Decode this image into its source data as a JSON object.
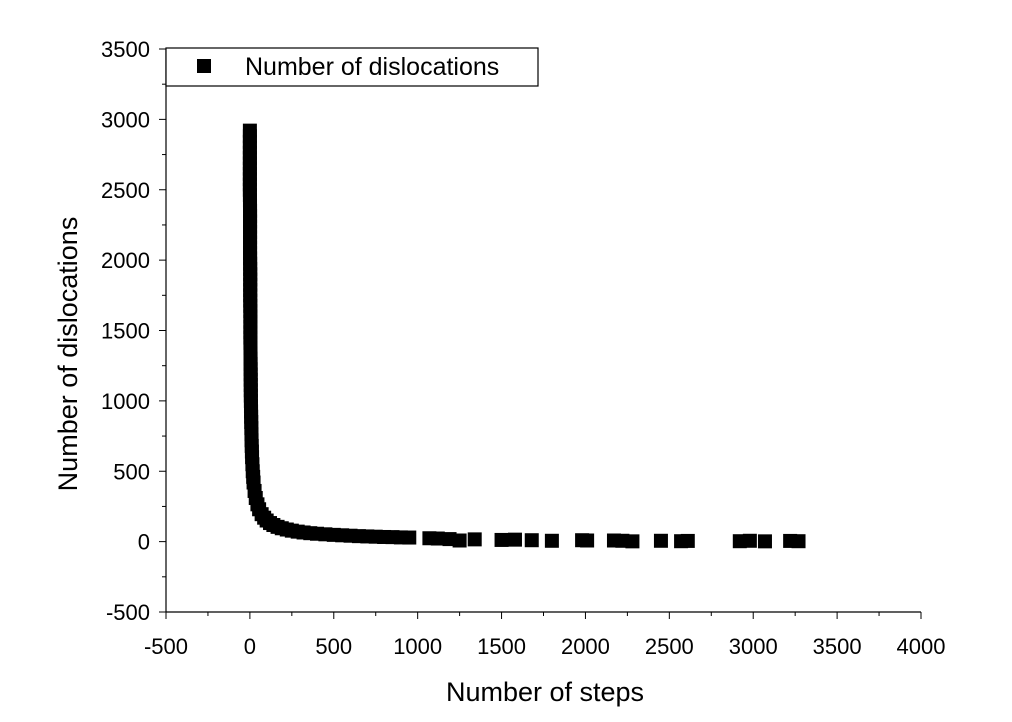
{
  "chart_data": {
    "type": "scatter",
    "title": "",
    "xlabel": "Number of steps",
    "ylabel": "Number of dislocations",
    "xlim": [
      -500,
      4000
    ],
    "ylim": [
      -500,
      3500
    ],
    "xticks": [
      -500,
      0,
      500,
      1000,
      1500,
      2000,
      2500,
      3000,
      3500,
      4000
    ],
    "yticks": [
      -500,
      0,
      500,
      1000,
      1500,
      2000,
      2500,
      3000,
      3500
    ],
    "grid": false,
    "legend_position": "top-left",
    "marker": "square",
    "marker_color": "#000000",
    "series": [
      {
        "name": "Number of dislocations",
        "points": [
          [
            0,
            2920
          ],
          [
            0,
            2800
          ],
          [
            0,
            2650
          ],
          [
            0,
            2500
          ],
          [
            1,
            2350
          ],
          [
            1,
            2200
          ],
          [
            1,
            2050
          ],
          [
            2,
            1900
          ],
          [
            2,
            1750
          ],
          [
            3,
            1600
          ],
          [
            3,
            1450
          ],
          [
            4,
            1300
          ],
          [
            5,
            1150
          ],
          [
            6,
            1000
          ],
          [
            8,
            850
          ],
          [
            10,
            720
          ],
          [
            13,
            600
          ],
          [
            17,
            500
          ],
          [
            22,
            420
          ],
          [
            28,
            360
          ],
          [
            35,
            310
          ],
          [
            45,
            265
          ],
          [
            55,
            230
          ],
          [
            70,
            195
          ],
          [
            85,
            170
          ],
          [
            100,
            150
          ],
          [
            120,
            132
          ],
          [
            140,
            118
          ],
          [
            165,
            105
          ],
          [
            190,
            95
          ],
          [
            220,
            86
          ],
          [
            250,
            78
          ],
          [
            285,
            71
          ],
          [
            320,
            65
          ],
          [
            360,
            60
          ],
          [
            400,
            56
          ],
          [
            450,
            52
          ],
          [
            500,
            48
          ],
          [
            550,
            45
          ],
          [
            600,
            42
          ],
          [
            650,
            39
          ],
          [
            700,
            37
          ],
          [
            750,
            35
          ],
          [
            800,
            33
          ],
          [
            850,
            32
          ],
          [
            900,
            30
          ],
          [
            950,
            29
          ],
          [
            1070,
            24
          ],
          [
            1120,
            22
          ],
          [
            1190,
            18
          ],
          [
            1250,
            8
          ],
          [
            1340,
            16
          ],
          [
            1500,
            12
          ],
          [
            1580,
            14
          ],
          [
            1680,
            10
          ],
          [
            1800,
            6
          ],
          [
            1980,
            10
          ],
          [
            2010,
            8
          ],
          [
            2170,
            8
          ],
          [
            2220,
            6
          ],
          [
            2280,
            2
          ],
          [
            2450,
            6
          ],
          [
            2570,
            3
          ],
          [
            2610,
            5
          ],
          [
            2920,
            3
          ],
          [
            2980,
            6
          ],
          [
            3070,
            2
          ],
          [
            3220,
            5
          ],
          [
            3270,
            3
          ]
        ]
      }
    ]
  }
}
